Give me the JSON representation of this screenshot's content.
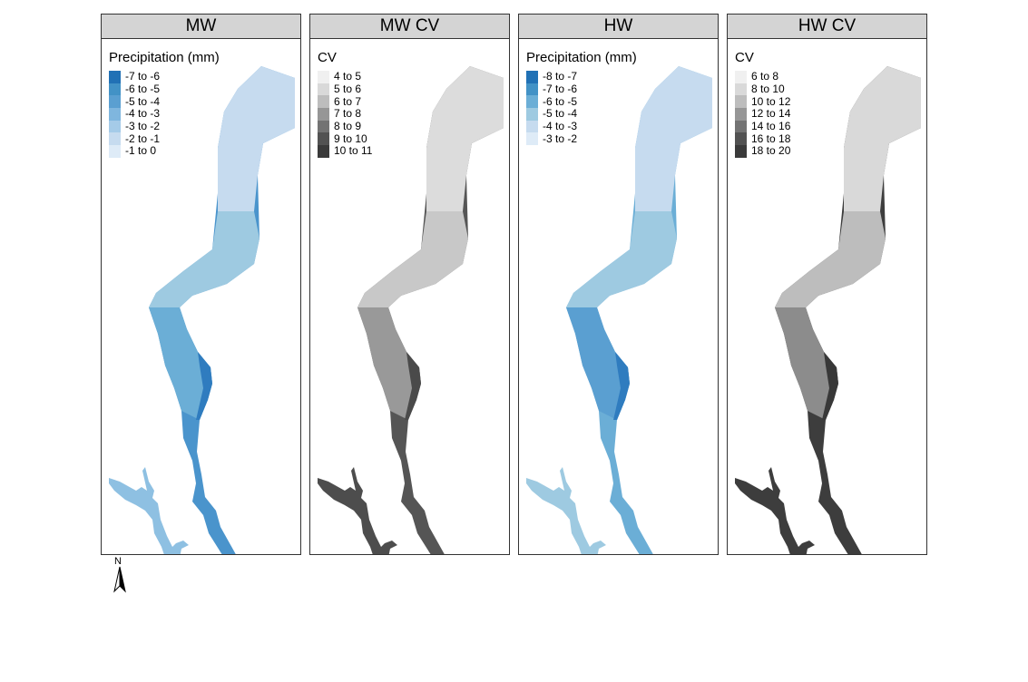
{
  "panels": [
    {
      "title": "MW",
      "legend_title": "Precipitation (mm)",
      "legend": [
        {
          "label": "-7 to -6",
          "color": "#2171b5"
        },
        {
          "label": "-6 to -5",
          "color": "#4292c6"
        },
        {
          "label": "-5 to -4",
          "color": "#5a9fd1"
        },
        {
          "label": "-4 to -3",
          "color": "#7fb6de"
        },
        {
          "label": "-3 to -2",
          "color": "#a5cbe8"
        },
        {
          "label": "-2 to -1",
          "color": "#c6dbef"
        },
        {
          "label": "-1 to 0",
          "color": "#deebf7"
        }
      ],
      "map_colors": {
        "north": "#c6dbef",
        "upper": "#9ecae1",
        "middle": "#6baed6",
        "lower": "#4a94cc",
        "edge": "#2f7cbf",
        "tributary": "#8ec0e2"
      }
    },
    {
      "title": "MW CV",
      "legend_title": "CV",
      "legend": [
        {
          "label": "4 to 5",
          "color": "#f0f0f0"
        },
        {
          "label": "5 to 6",
          "color": "#d9d9d9"
        },
        {
          "label": "6 to 7",
          "color": "#bdbdbd"
        },
        {
          "label": "7 to 8",
          "color": "#969696"
        },
        {
          "label": "8 to 9",
          "color": "#737373"
        },
        {
          "label": "9 to 10",
          "color": "#525252"
        },
        {
          "label": "10 to 11",
          "color": "#3a3a3a"
        }
      ],
      "map_colors": {
        "north": "#dcdcdc",
        "upper": "#c8c8c8",
        "middle": "#999999",
        "lower": "#555555",
        "edge": "#4a4a4a",
        "tributary": "#4d4d4d"
      }
    },
    {
      "title": "HW",
      "legend_title": "Precipitation (mm)",
      "legend": [
        {
          "label": "-8 to -7",
          "color": "#2171b5"
        },
        {
          "label": "-7 to -6",
          "color": "#4292c6"
        },
        {
          "label": "-6 to -5",
          "color": "#6baed6"
        },
        {
          "label": "-5 to -4",
          "color": "#9ecae1"
        },
        {
          "label": "-4 to -3",
          "color": "#c6dbef"
        },
        {
          "label": "-3 to -2",
          "color": "#deebf7"
        }
      ],
      "map_colors": {
        "north": "#c6dbef",
        "upper": "#9ecae1",
        "middle": "#5a9fd1",
        "lower": "#6baed6",
        "edge": "#2f7cbf",
        "tributary": "#9ecae1"
      }
    },
    {
      "title": "HW CV",
      "legend_title": "CV",
      "legend": [
        {
          "label": "6 to 8",
          "color": "#f0f0f0"
        },
        {
          "label": "8 to 10",
          "color": "#d9d9d9"
        },
        {
          "label": "10 to 12",
          "color": "#bdbdbd"
        },
        {
          "label": "12 to 14",
          "color": "#969696"
        },
        {
          "label": "14 to 16",
          "color": "#737373"
        },
        {
          "label": "16 to 18",
          "color": "#525252"
        },
        {
          "label": "18 to 20",
          "color": "#3a3a3a"
        }
      ],
      "map_colors": {
        "north": "#d9d9d9",
        "upper": "#bdbdbd",
        "middle": "#8c8c8c",
        "lower": "#3d3d3d",
        "edge": "#383838",
        "tributary": "#3d3d3d"
      }
    }
  ],
  "north_arrow": {
    "label": "N"
  }
}
